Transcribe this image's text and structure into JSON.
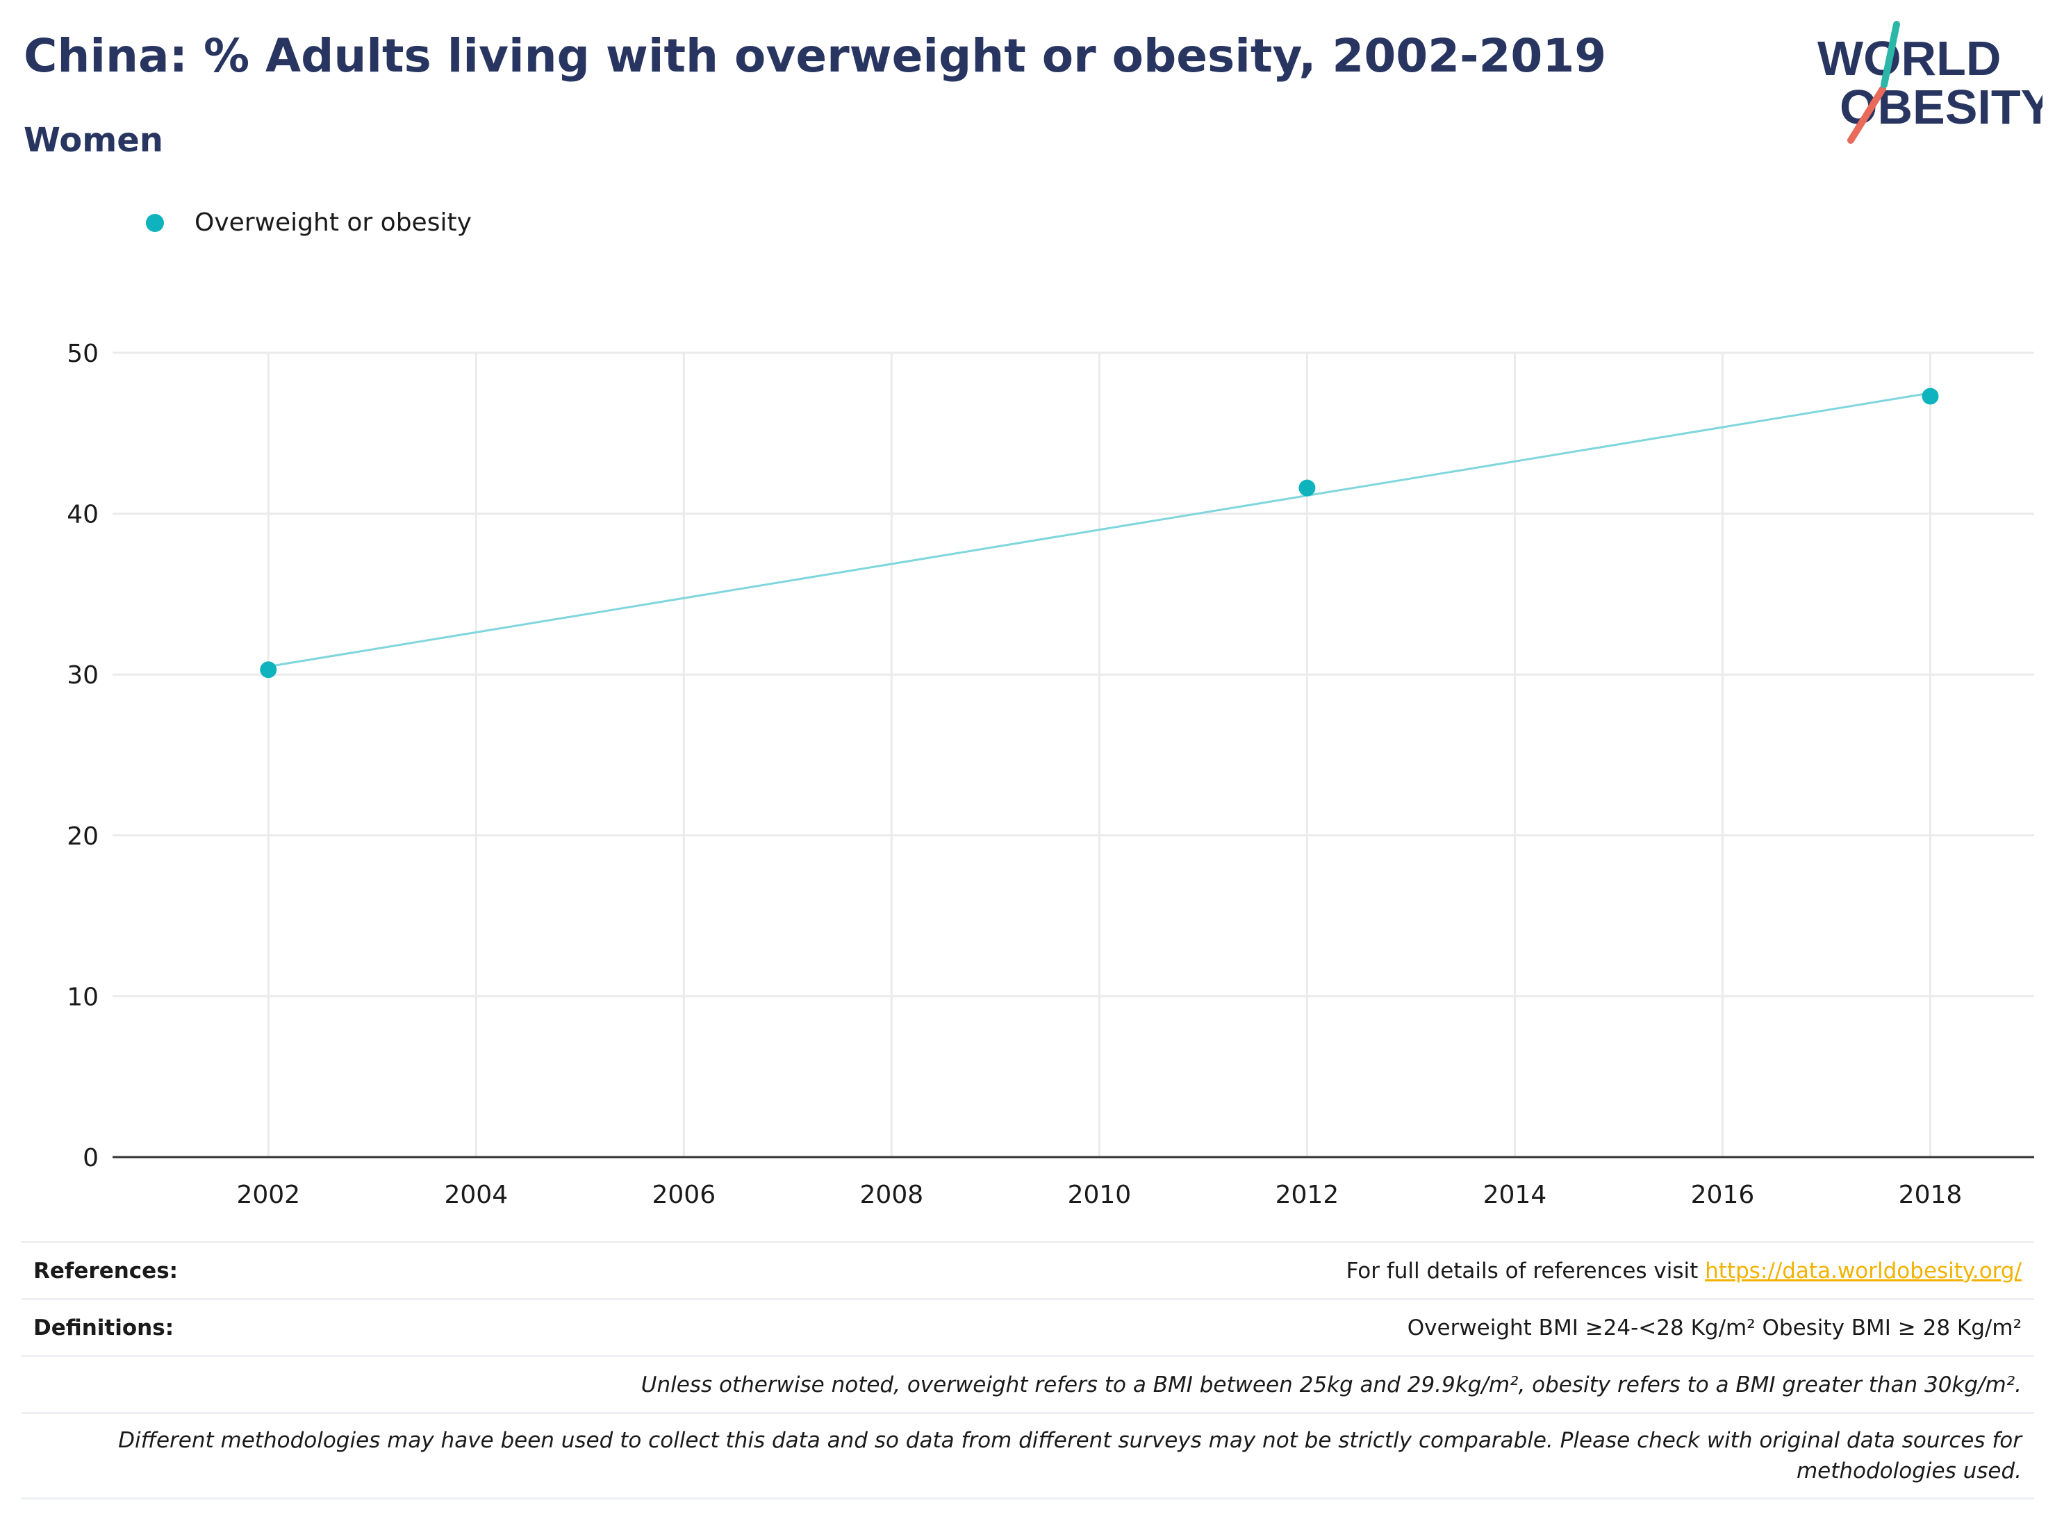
{
  "header": {
    "title": "China: % Adults living with overweight or obesity, 2002-2019",
    "subtitle": "Women",
    "logo_text_line1": "WORLD",
    "logo_text_line2": "OBESITY"
  },
  "colors": {
    "title": "#283560",
    "series": "#0fb3be",
    "series_line": "#7fd6dc",
    "link": "#f2b200",
    "grid": "#ebebeb",
    "logo_teal": "#2bb6a8",
    "logo_coral": "#e86a5a"
  },
  "chart_data": {
    "type": "line",
    "series": [
      {
        "name": "Overweight or obesity",
        "points": [
          {
            "x": 2002,
            "y": 30.3
          },
          {
            "x": 2012,
            "y": 41.6
          },
          {
            "x": 2018,
            "y": 47.3
          }
        ],
        "trend": [
          {
            "x": 2002,
            "y": 30.5
          },
          {
            "x": 2018,
            "y": 47.5
          }
        ]
      }
    ],
    "xlim": [
      2000.5,
      2019
    ],
    "ylim": [
      0,
      50
    ],
    "xticks": [
      2002,
      2004,
      2006,
      2008,
      2010,
      2012,
      2014,
      2016,
      2018
    ],
    "yticks": [
      0,
      10,
      20,
      30,
      40,
      50
    ],
    "grid": true,
    "legend_position": "top-left"
  },
  "notes": {
    "references_label": "References:",
    "references_text": "For full details of references visit ",
    "references_link": "https://data.worldobesity.org/",
    "definitions_label": "Definitions:",
    "definitions_text": "Overweight BMI ≥24-<28 Kg/m² Obesity BMI ≥ 28 Kg/m²",
    "note1": "Unless otherwise noted, overweight refers to a BMI between 25kg and 29.9kg/m², obesity refers to a BMI greater than 30kg/m².",
    "note2_line1": "Different methodologies may have been used to collect this data and so data from different surveys may not be strictly comparable. Please check with original data sources for",
    "note2_line2": "methodologies used."
  }
}
